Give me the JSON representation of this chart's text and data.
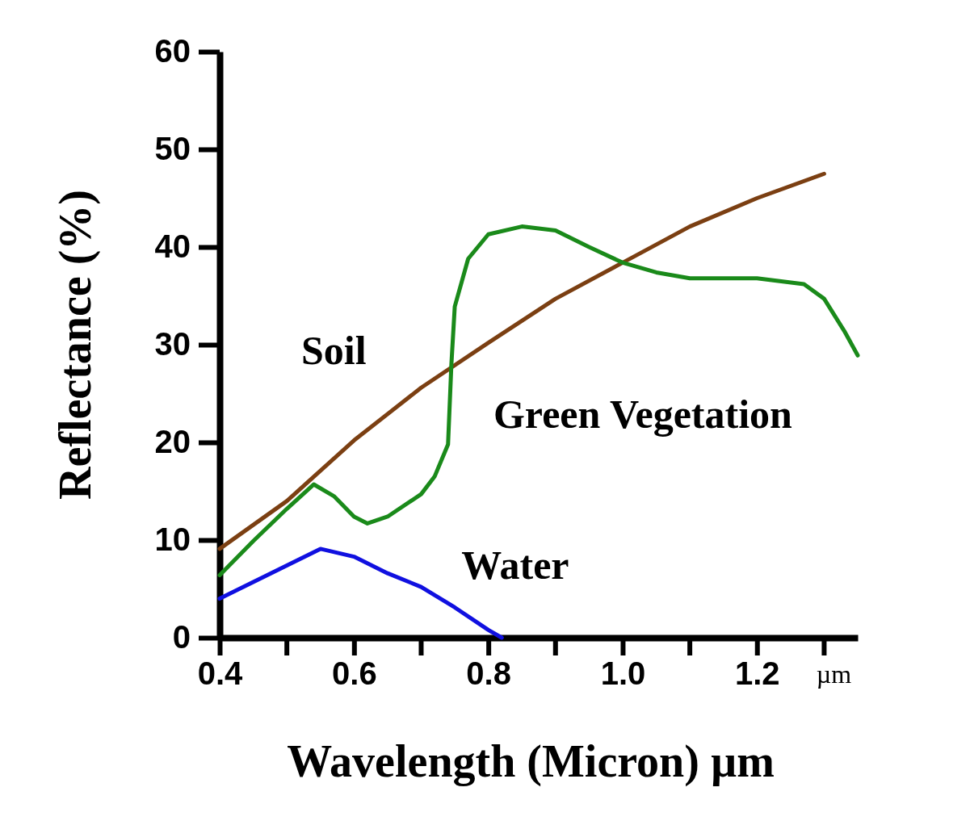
{
  "chart_data": {
    "type": "line",
    "xlabel": "Wavelength (Micron) µm",
    "ylabel": "Reflectance (%)",
    "xlim": [
      0.4,
      1.35
    ],
    "ylim": [
      0,
      60
    ],
    "xticks": [
      {
        "value": 0.4,
        "label": "0.4"
      },
      {
        "value": 0.6,
        "label": "0.6"
      },
      {
        "value": 0.8,
        "label": "0.8"
      },
      {
        "value": 1.0,
        "label": "1.0"
      },
      {
        "value": 1.2,
        "label": "1.2"
      }
    ],
    "yticks": [
      0,
      10,
      20,
      30,
      40,
      50,
      60
    ],
    "grid": false,
    "legend": false,
    "marker": "none",
    "line_style": "solid",
    "annotations": [
      "µm"
    ],
    "series": [
      {
        "name": "Soil",
        "color": "#7b3f12",
        "x": [
          0.4,
          0.5,
          0.6,
          0.7,
          0.8,
          0.9,
          1.0,
          1.1,
          1.2,
          1.3
        ],
        "values": [
          9.1,
          14,
          20.2,
          25.6,
          30.2,
          34.7,
          38.4,
          42.1,
          45,
          47.5
        ]
      },
      {
        "name": "Green Vegetation",
        "color": "#1a8a1a",
        "x": [
          0.4,
          0.45,
          0.5,
          0.54,
          0.57,
          0.6,
          0.62,
          0.65,
          0.7,
          0.72,
          0.74,
          0.745,
          0.75,
          0.77,
          0.8,
          0.85,
          0.9,
          0.95,
          1.0,
          1.05,
          1.1,
          1.2,
          1.27,
          1.3,
          1.33,
          1.35
        ],
        "values": [
          6.4,
          9.9,
          13.2,
          15.7,
          14.5,
          12.4,
          11.7,
          12.4,
          14.7,
          16.5,
          19.8,
          28,
          33.9,
          38.8,
          41.3,
          42.1,
          41.7,
          40,
          38.4,
          37.4,
          36.8,
          36.8,
          36.2,
          34.7,
          31.4,
          28.9
        ]
      },
      {
        "name": "Water",
        "color": "#1010e0",
        "x": [
          0.4,
          0.5,
          0.55,
          0.6,
          0.65,
          0.7,
          0.75,
          0.8,
          0.82
        ],
        "values": [
          4,
          7.4,
          9.1,
          8.3,
          6.6,
          5.2,
          3.1,
          0.8,
          0
        ]
      }
    ]
  }
}
